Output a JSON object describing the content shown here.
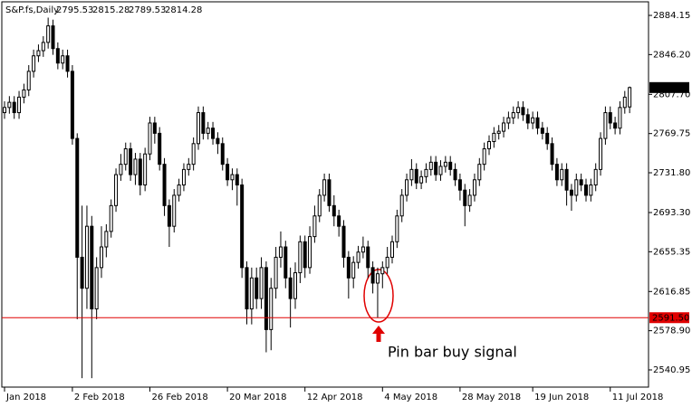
{
  "chart_data": {
    "type": "candlestick",
    "title": "S&P.fs,Daily",
    "open": [
      2790,
      2795,
      2800,
      2790,
      2805,
      2812,
      2830,
      2845,
      2850,
      2858,
      2874,
      2852,
      2838,
      2845,
      2830,
      2765,
      2650,
      2620,
      2680,
      2600,
      2640,
      2660,
      2675,
      2700,
      2730,
      2740,
      2755,
      2730,
      2745,
      2720,
      2750,
      2780,
      2770,
      2740,
      2700,
      2680,
      2710,
      2720,
      2735,
      2740,
      2760,
      2790,
      2770,
      2775,
      2765,
      2760,
      2740,
      2725,
      2730,
      2720,
      2640,
      2600,
      2630,
      2610,
      2640,
      2580,
      2620,
      2650,
      2660,
      2630,
      2610,
      2635,
      2665,
      2640,
      2670,
      2690,
      2710,
      2725,
      2700,
      2690,
      2680,
      2650,
      2630,
      2645,
      2655,
      2660,
      2640,
      2625,
      2634,
      2640,
      2650,
      2665,
      2690,
      2710,
      2725,
      2735,
      2722,
      2728,
      2735,
      2742,
      2730,
      2738,
      2742,
      2735,
      2725,
      2715,
      2700,
      2710,
      2725,
      2740,
      2755,
      2762,
      2770,
      2772,
      2780,
      2785,
      2790,
      2795,
      2788,
      2780,
      2785,
      2775,
      2770,
      2760,
      2740,
      2725,
      2735,
      2715,
      2710,
      2725,
      2720,
      2710,
      2720,
      2735,
      2765,
      2790,
      2780,
      2775,
      2795,
      2795.53
    ],
    "high": [
      2801,
      2806,
      2806,
      2811,
      2818,
      2836,
      2851,
      2856,
      2864,
      2882,
      2880,
      2858,
      2851,
      2851,
      2836,
      2770,
      2700,
      2700,
      2690,
      2650,
      2680,
      2682,
      2706,
      2736,
      2750,
      2761,
      2761,
      2751,
      2751,
      2756,
      2786,
      2786,
      2776,
      2746,
      2706,
      2716,
      2726,
      2741,
      2746,
      2766,
      2796,
      2796,
      2781,
      2781,
      2771,
      2766,
      2746,
      2736,
      2736,
      2726,
      2646,
      2640,
      2640,
      2650,
      2646,
      2630,
      2660,
      2675,
      2666,
      2640,
      2645,
      2671,
      2671,
      2680,
      2700,
      2716,
      2731,
      2731,
      2710,
      2696,
      2686,
      2656,
      2651,
      2661,
      2670,
      2666,
      2646,
      2640,
      2646,
      2660,
      2671,
      2696,
      2716,
      2731,
      2745,
      2741,
      2734,
      2741,
      2748,
      2748,
      2744,
      2748,
      2748,
      2741,
      2731,
      2721,
      2716,
      2731,
      2746,
      2761,
      2768,
      2776,
      2778,
      2786,
      2791,
      2796,
      2801,
      2801,
      2794,
      2791,
      2791,
      2781,
      2776,
      2766,
      2746,
      2741,
      2741,
      2721,
      2731,
      2731,
      2726,
      2726,
      2741,
      2771,
      2796,
      2796,
      2786,
      2801,
      2811,
      2815.28
    ],
    "low": [
      2784,
      2789,
      2784,
      2784,
      2799,
      2806,
      2824,
      2839,
      2844,
      2852,
      2846,
      2832,
      2832,
      2824,
      2759,
      2590,
      2533,
      2600,
      2533,
      2590,
      2630,
      2650,
      2669,
      2694,
      2724,
      2734,
      2724,
      2720,
      2710,
      2714,
      2744,
      2760,
      2734,
      2690,
      2660,
      2674,
      2704,
      2714,
      2729,
      2734,
      2754,
      2764,
      2764,
      2759,
      2750,
      2734,
      2719,
      2715,
      2700,
      2630,
      2585,
      2585,
      2600,
      2600,
      2558,
      2560,
      2610,
      2640,
      2620,
      2582,
      2600,
      2625,
      2630,
      2634,
      2664,
      2684,
      2704,
      2694,
      2680,
      2670,
      2640,
      2610,
      2620,
      2639,
      2649,
      2630,
      2615,
      2591.5,
      2620,
      2634,
      2644,
      2659,
      2684,
      2704,
      2719,
      2716,
      2716,
      2722,
      2729,
      2724,
      2724,
      2732,
      2729,
      2719,
      2705,
      2680,
      2694,
      2704,
      2719,
      2734,
      2749,
      2756,
      2764,
      2766,
      2774,
      2779,
      2784,
      2782,
      2774,
      2774,
      2769,
      2764,
      2754,
      2734,
      2719,
      2719,
      2700,
      2695,
      2704,
      2714,
      2704,
      2704,
      2714,
      2729,
      2759,
      2774,
      2769,
      2769,
      2789,
      2789.53
    ],
    "close": [
      2795,
      2800,
      2790,
      2805,
      2812,
      2830,
      2845,
      2850,
      2858,
      2874,
      2852,
      2838,
      2845,
      2830,
      2765,
      2650,
      2620,
      2680,
      2600,
      2640,
      2660,
      2675,
      2700,
      2730,
      2740,
      2755,
      2730,
      2745,
      2720,
      2750,
      2780,
      2770,
      2740,
      2700,
      2680,
      2710,
      2720,
      2735,
      2740,
      2760,
      2790,
      2770,
      2775,
      2765,
      2760,
      2740,
      2725,
      2730,
      2720,
      2640,
      2600,
      2630,
      2610,
      2640,
      2580,
      2620,
      2650,
      2660,
      2630,
      2610,
      2635,
      2665,
      2640,
      2670,
      2690,
      2710,
      2725,
      2700,
      2690,
      2680,
      2650,
      2630,
      2645,
      2655,
      2660,
      2640,
      2625,
      2634,
      2640,
      2650,
      2665,
      2690,
      2710,
      2725,
      2735,
      2722,
      2728,
      2735,
      2742,
      2730,
      2738,
      2742,
      2735,
      2725,
      2715,
      2700,
      2710,
      2725,
      2740,
      2755,
      2762,
      2770,
      2772,
      2780,
      2785,
      2790,
      2795,
      2788,
      2780,
      2785,
      2775,
      2770,
      2760,
      2740,
      2725,
      2735,
      2715,
      2710,
      2725,
      2720,
      2710,
      2720,
      2735,
      2765,
      2790,
      2780,
      2775,
      2795,
      2805,
      2814.28
    ],
    "ylim": [
      2524.3,
      2897.3
    ],
    "yticks": [
      2884.15,
      {
        "value": 2846.2,
        "label": "2846.20"
      },
      {
        "value": 2807.7,
        "label": "2807.70"
      },
      2769.75,
      {
        "value": 2731.8,
        "label": "2731.80"
      },
      {
        "value": 2693.3,
        "label": "2693.30"
      },
      2655.35,
      2616.85,
      {
        "value": 2578.9,
        "label": "2578.90"
      },
      2540.95
    ],
    "xticks": [
      {
        "value": 0,
        "label": "Jan 2018"
      },
      {
        "value": 14,
        "label": "2 Feb 2018"
      },
      {
        "value": 30,
        "label": "26 Feb 2018"
      },
      {
        "value": 46,
        "label": "20 Mar 2018"
      },
      {
        "value": 62,
        "label": "12 Apr 2018"
      },
      {
        "value": 78,
        "label": "4 May 2018"
      },
      {
        "value": 94,
        "label": "28 May 2018"
      },
      {
        "value": 109,
        "label": "19 Jun 2018"
      },
      {
        "value": 125,
        "label": "11 Jul 2018"
      }
    ],
    "level": {
      "value": 2591.5,
      "label": "2591.50",
      "color": "#e00000"
    },
    "annotation": "Pin bar buy signal",
    "up_color": "#ffffff",
    "down_color": "#000000",
    "annotation_color": "#e00000"
  }
}
